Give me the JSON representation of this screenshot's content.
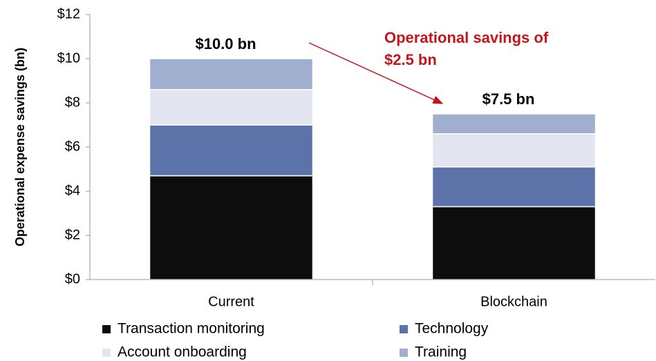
{
  "chart_data": {
    "type": "stacked-bar",
    "y_label": "Operational expense savings (bn)",
    "categories": [
      "Current",
      "Blockchain"
    ],
    "series": [
      {
        "name": "Transaction monitoring",
        "color": "#0d0d0d",
        "values": [
          4.7,
          3.3
        ]
      },
      {
        "name": "Technology",
        "color": "#5b73a8",
        "values": [
          2.3,
          1.8
        ]
      },
      {
        "name": "Account onboarding",
        "color": "#e2e5ef",
        "values": [
          1.6,
          1.5
        ]
      },
      {
        "name": "Training",
        "color": "#a0aed0",
        "values": [
          1.4,
          0.9
        ]
      }
    ],
    "ylim": [
      0,
      12
    ],
    "yticks": [
      {
        "value": 0,
        "label": "$0"
      },
      {
        "value": 2,
        "label": "$2"
      },
      {
        "value": 4,
        "label": "$4"
      },
      {
        "value": 6,
        "label": "$6"
      },
      {
        "value": 8,
        "label": "$8"
      },
      {
        "value": 10,
        "label": "$10"
      },
      {
        "value": 12,
        "label": "$12"
      }
    ],
    "total_annotations": [
      "$10.0 bn",
      "$7.5 bn"
    ],
    "savings_annotation": [
      "Operational savings of",
      "$2.5 bn"
    ],
    "annotation_color": "#c0161c"
  }
}
